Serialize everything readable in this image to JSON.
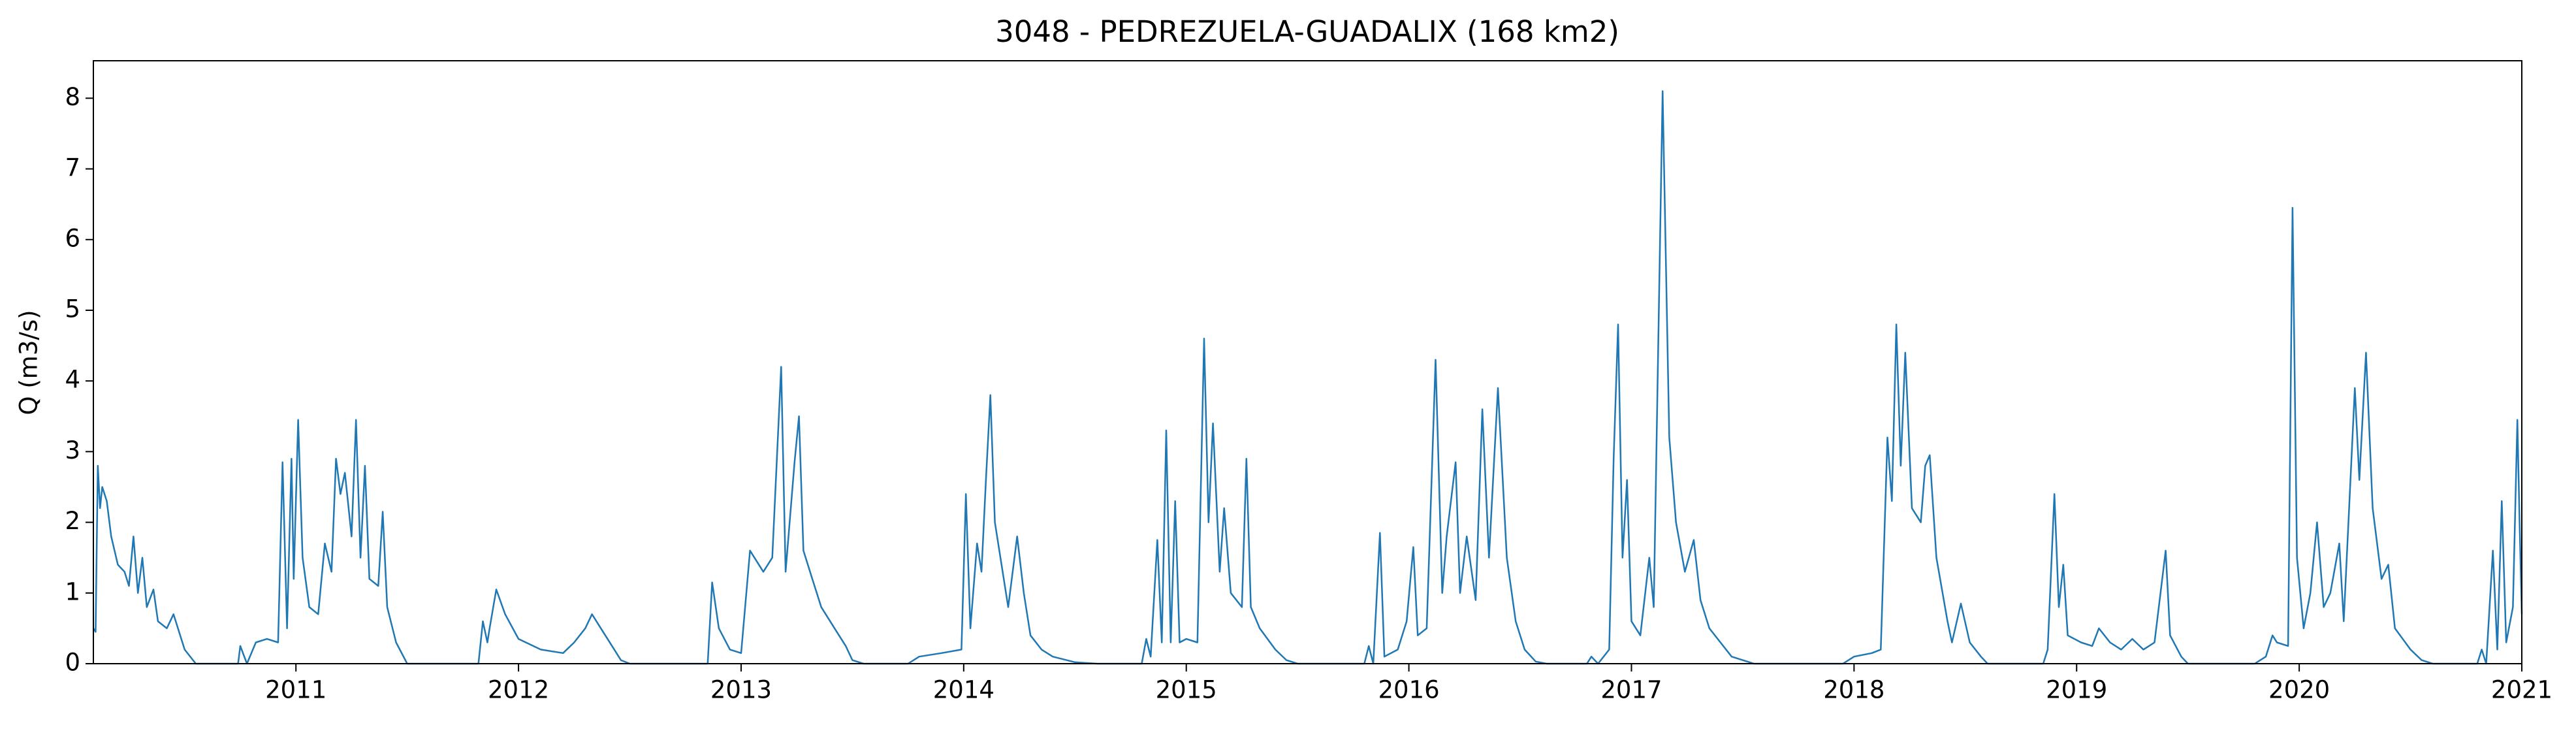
{
  "chart_data": {
    "type": "line",
    "title": "3048 - PEDREZUELA-GUADALIX (168 km2)",
    "ylabel": "Q (m3/s)",
    "color": "#1f77b4",
    "xlim": [
      2010.09,
      2021.0
    ],
    "ylim": [
      0,
      8.53
    ],
    "xticks": [
      2011,
      2012,
      2013,
      2014,
      2015,
      2016,
      2017,
      2018,
      2019,
      2020,
      2021
    ],
    "yticks": [
      0,
      1,
      2,
      3,
      4,
      5,
      6,
      7,
      8
    ],
    "x": [
      2010.09,
      2010.1,
      2010.11,
      2010.12,
      2010.13,
      2010.15,
      2010.17,
      2010.2,
      2010.23,
      2010.25,
      2010.27,
      2010.29,
      2010.31,
      2010.33,
      2010.36,
      2010.38,
      2010.42,
      2010.45,
      2010.5,
      2010.55,
      2010.74,
      2010.75,
      2010.78,
      2010.82,
      2010.87,
      2010.92,
      2010.94,
      2010.96,
      2010.98,
      2010.99,
      2011.01,
      2011.03,
      2011.06,
      2011.1,
      2011.13,
      2011.16,
      2011.18,
      2011.2,
      2011.22,
      2011.25,
      2011.27,
      2011.29,
      2011.31,
      2011.33,
      2011.37,
      2011.39,
      2011.41,
      2011.45,
      2011.5,
      2011.82,
      2011.84,
      2011.86,
      2011.87,
      2011.9,
      2011.94,
      2012.0,
      2012.1,
      2012.2,
      2012.25,
      2012.3,
      2012.33,
      2012.37,
      2012.42,
      2012.46,
      2012.5,
      2012.85,
      2012.87,
      2012.9,
      2012.95,
      2013.0,
      2013.04,
      2013.1,
      2013.14,
      2013.18,
      2013.2,
      2013.24,
      2013.26,
      2013.28,
      2013.32,
      2013.36,
      2013.42,
      2013.47,
      2013.5,
      2013.55,
      2013.75,
      2013.8,
      2013.9,
      2013.99,
      2014.01,
      2014.03,
      2014.06,
      2014.08,
      2014.1,
      2014.12,
      2014.14,
      2014.17,
      2014.2,
      2014.24,
      2014.27,
      2014.3,
      2014.35,
      2014.4,
      2014.5,
      2014.6,
      2014.8,
      2014.82,
      2014.84,
      2014.87,
      2014.89,
      2014.91,
      2014.93,
      2014.95,
      2014.97,
      2015.0,
      2015.05,
      2015.08,
      2015.1,
      2015.12,
      2015.15,
      2015.17,
      2015.2,
      2015.25,
      2015.27,
      2015.29,
      2015.33,
      2015.4,
      2015.45,
      2015.5,
      2015.8,
      2015.82,
      2015.84,
      2015.87,
      2015.89,
      2015.95,
      2015.99,
      2016.02,
      2016.04,
      2016.08,
      2016.12,
      2016.15,
      2016.17,
      2016.21,
      2016.23,
      2016.26,
      2016.3,
      2016.33,
      2016.36,
      2016.4,
      2016.44,
      2016.48,
      2016.52,
      2016.57,
      2016.62,
      2016.8,
      2016.82,
      2016.85,
      2016.9,
      2016.92,
      2016.94,
      2016.96,
      2016.98,
      2017.0,
      2017.04,
      2017.08,
      2017.1,
      2017.14,
      2017.17,
      2017.2,
      2017.24,
      2017.28,
      2017.31,
      2017.35,
      2017.4,
      2017.45,
      2017.5,
      2017.55,
      2017.95,
      2018.0,
      2018.08,
      2018.12,
      2018.15,
      2018.17,
      2018.19,
      2018.21,
      2018.23,
      2018.26,
      2018.3,
      2018.32,
      2018.34,
      2018.37,
      2018.42,
      2018.44,
      2018.48,
      2018.52,
      2018.57,
      2018.6,
      2018.85,
      2018.87,
      2018.9,
      2018.92,
      2018.94,
      2018.96,
      2019.02,
      2019.07,
      2019.1,
      2019.15,
      2019.2,
      2019.25,
      2019.3,
      2019.35,
      2019.4,
      2019.42,
      2019.47,
      2019.5,
      2019.8,
      2019.85,
      2019.88,
      2019.9,
      2019.95,
      2019.97,
      2019.99,
      2020.02,
      2020.05,
      2020.08,
      2020.11,
      2020.14,
      2020.18,
      2020.2,
      2020.25,
      2020.27,
      2020.3,
      2020.33,
      2020.37,
      2020.4,
      2020.43,
      2020.5,
      2020.55,
      2020.6,
      2020.8,
      2020.82,
      2020.84,
      2020.87,
      2020.89,
      2020.91,
      2020.93,
      2020.96,
      2020.98,
      2020.99,
      2021.0
    ],
    "values": [
      0.5,
      0.45,
      2.8,
      2.2,
      2.5,
      2.3,
      1.8,
      1.4,
      1.3,
      1.1,
      1.8,
      1.0,
      1.5,
      0.8,
      1.05,
      0.6,
      0.5,
      0.7,
      0.2,
      0,
      0,
      0.25,
      0,
      0.3,
      0.35,
      0.3,
      2.85,
      0.5,
      2.9,
      1.2,
      3.45,
      1.5,
      0.8,
      0.7,
      1.7,
      1.3,
      2.9,
      2.4,
      2.7,
      1.8,
      3.45,
      1.5,
      2.8,
      1.2,
      1.1,
      2.15,
      0.8,
      0.3,
      0,
      0,
      0.6,
      0.3,
      0.5,
      1.05,
      0.7,
      0.35,
      0.2,
      0.15,
      0.3,
      0.5,
      0.7,
      0.5,
      0.25,
      0.05,
      0,
      0,
      1.15,
      0.5,
      0.2,
      0.15,
      1.6,
      1.3,
      1.5,
      4.2,
      1.3,
      2.85,
      3.5,
      1.6,
      1.2,
      0.8,
      0.5,
      0.25,
      0.05,
      0,
      0,
      0.1,
      0.15,
      0.2,
      2.4,
      0.5,
      1.7,
      1.3,
      2.6,
      3.8,
      2.0,
      1.4,
      0.8,
      1.8,
      1.0,
      0.4,
      0.2,
      0.1,
      0.02,
      0,
      0,
      0.35,
      0.1,
      1.75,
      0.3,
      3.3,
      0.3,
      2.3,
      0.3,
      0.35,
      0.3,
      4.6,
      2.0,
      3.4,
      1.3,
      2.2,
      1.0,
      0.8,
      2.9,
      0.8,
      0.5,
      0.2,
      0.05,
      0,
      0,
      0.25,
      0,
      1.85,
      0.1,
      0.2,
      0.6,
      1.65,
      0.4,
      0.5,
      4.3,
      1.0,
      1.8,
      2.85,
      1.0,
      1.8,
      0.9,
      3.6,
      1.5,
      3.9,
      1.5,
      0.6,
      0.2,
      0.03,
      0,
      0,
      0.1,
      0,
      0.2,
      2.9,
      4.8,
      1.5,
      2.6,
      0.6,
      0.4,
      1.5,
      0.8,
      8.1,
      3.2,
      2.0,
      1.3,
      1.75,
      0.9,
      0.5,
      0.3,
      0.1,
      0.05,
      0,
      0,
      0.1,
      0.15,
      0.2,
      3.2,
      2.3,
      4.8,
      2.8,
      4.4,
      2.2,
      2.0,
      2.8,
      2.95,
      1.5,
      0.6,
      0.3,
      0.85,
      0.3,
      0.1,
      0,
      0,
      0.2,
      2.4,
      0.8,
      1.4,
      0.4,
      0.3,
      0.25,
      0.5,
      0.3,
      0.2,
      0.35,
      0.2,
      0.3,
      1.6,
      0.4,
      0.1,
      0,
      0,
      0.1,
      0.4,
      0.3,
      0.25,
      6.45,
      1.5,
      0.5,
      1.0,
      2.0,
      0.8,
      1.0,
      1.7,
      0.6,
      3.9,
      2.6,
      4.4,
      2.2,
      1.2,
      1.4,
      0.5,
      0.2,
      0.05,
      0,
      0,
      0.2,
      0,
      1.6,
      0.2,
      2.3,
      0.3,
      0.8,
      3.45,
      2.0,
      0.7
    ]
  }
}
